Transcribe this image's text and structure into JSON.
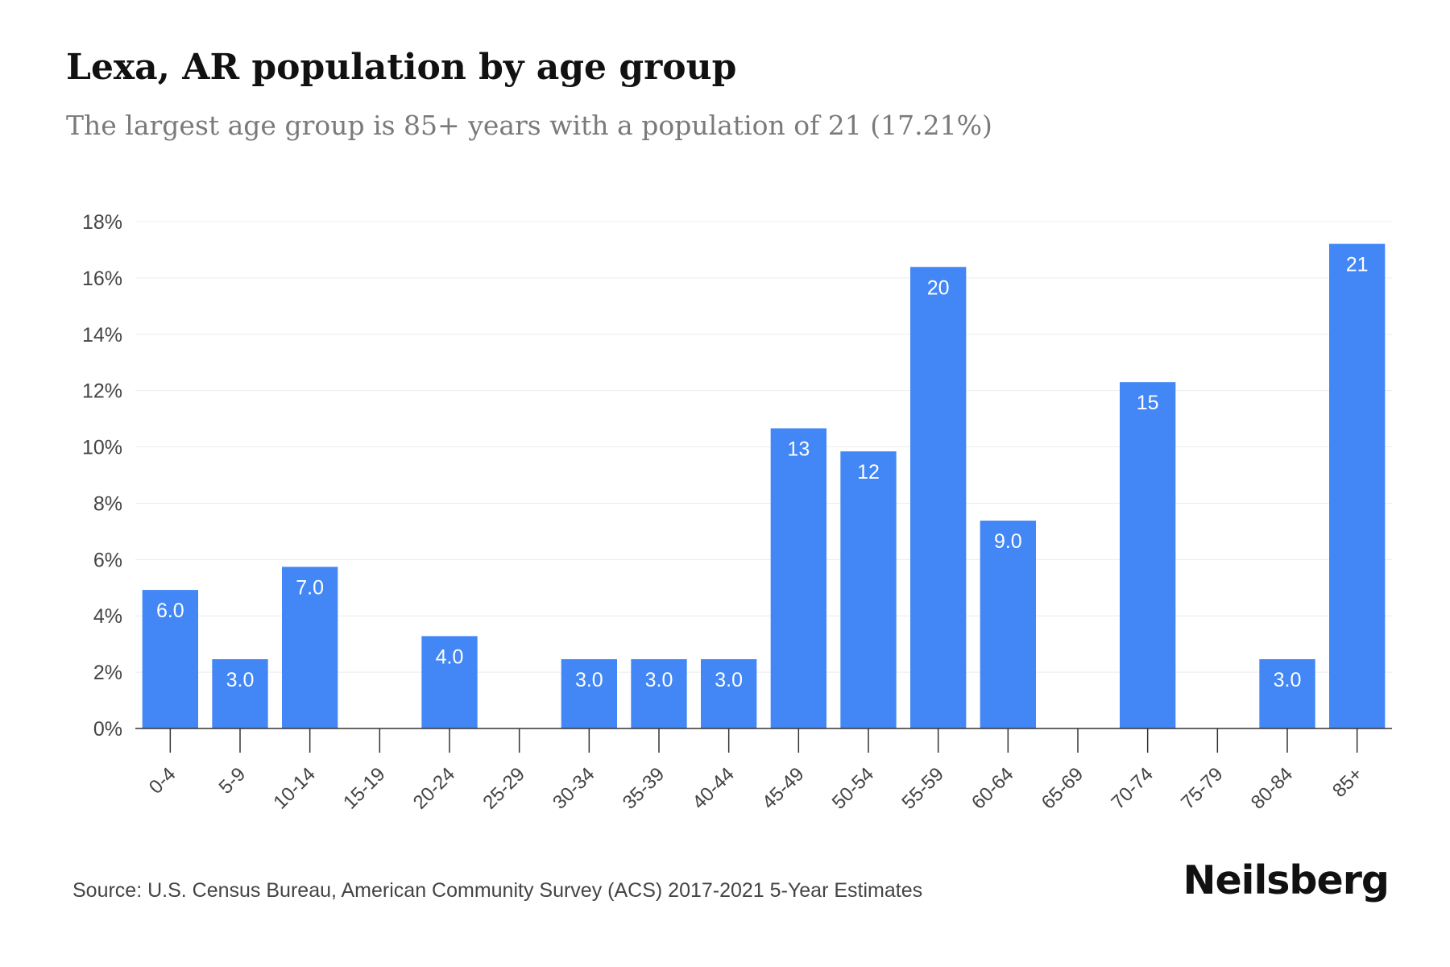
{
  "title": "Lexa, AR population by age group",
  "subtitle": "The largest age group is 85+ years with a population of 21 (17.21%)",
  "source": "Source: U.S. Census Bureau, American Community Survey (ACS) 2017-2021 5-Year Estimates",
  "brand": "Neilsberg",
  "colors": {
    "bar": "#4287f5",
    "grid": "#ececec",
    "axis": "#333333",
    "tick_text": "#444444",
    "bar_label": "#ffffff"
  },
  "chart_data": {
    "type": "bar",
    "categories": [
      "0-4",
      "5-9",
      "10-14",
      "15-19",
      "20-24",
      "25-29",
      "30-34",
      "35-39",
      "40-44",
      "45-49",
      "50-54",
      "55-59",
      "60-64",
      "65-69",
      "70-74",
      "75-79",
      "80-84",
      "85+"
    ],
    "values": [
      4.92,
      2.46,
      5.74,
      0,
      3.28,
      0,
      2.46,
      2.46,
      2.46,
      10.66,
      9.84,
      16.39,
      7.38,
      0,
      12.3,
      0,
      2.46,
      17.21
    ],
    "data_labels": [
      "6.0",
      "3.0",
      "7.0",
      "",
      "4.0",
      "",
      "3.0",
      "3.0",
      "3.0",
      "13",
      "12",
      "20",
      "9.0",
      "",
      "15",
      "",
      "3.0",
      "21"
    ],
    "yticks": [
      "0%",
      "2%",
      "4%",
      "6%",
      "8%",
      "10%",
      "12%",
      "14%",
      "16%",
      "18%"
    ],
    "ylim": [
      0,
      18
    ],
    "xlabel": "",
    "ylabel": "",
    "grid": true,
    "legend": "none"
  }
}
